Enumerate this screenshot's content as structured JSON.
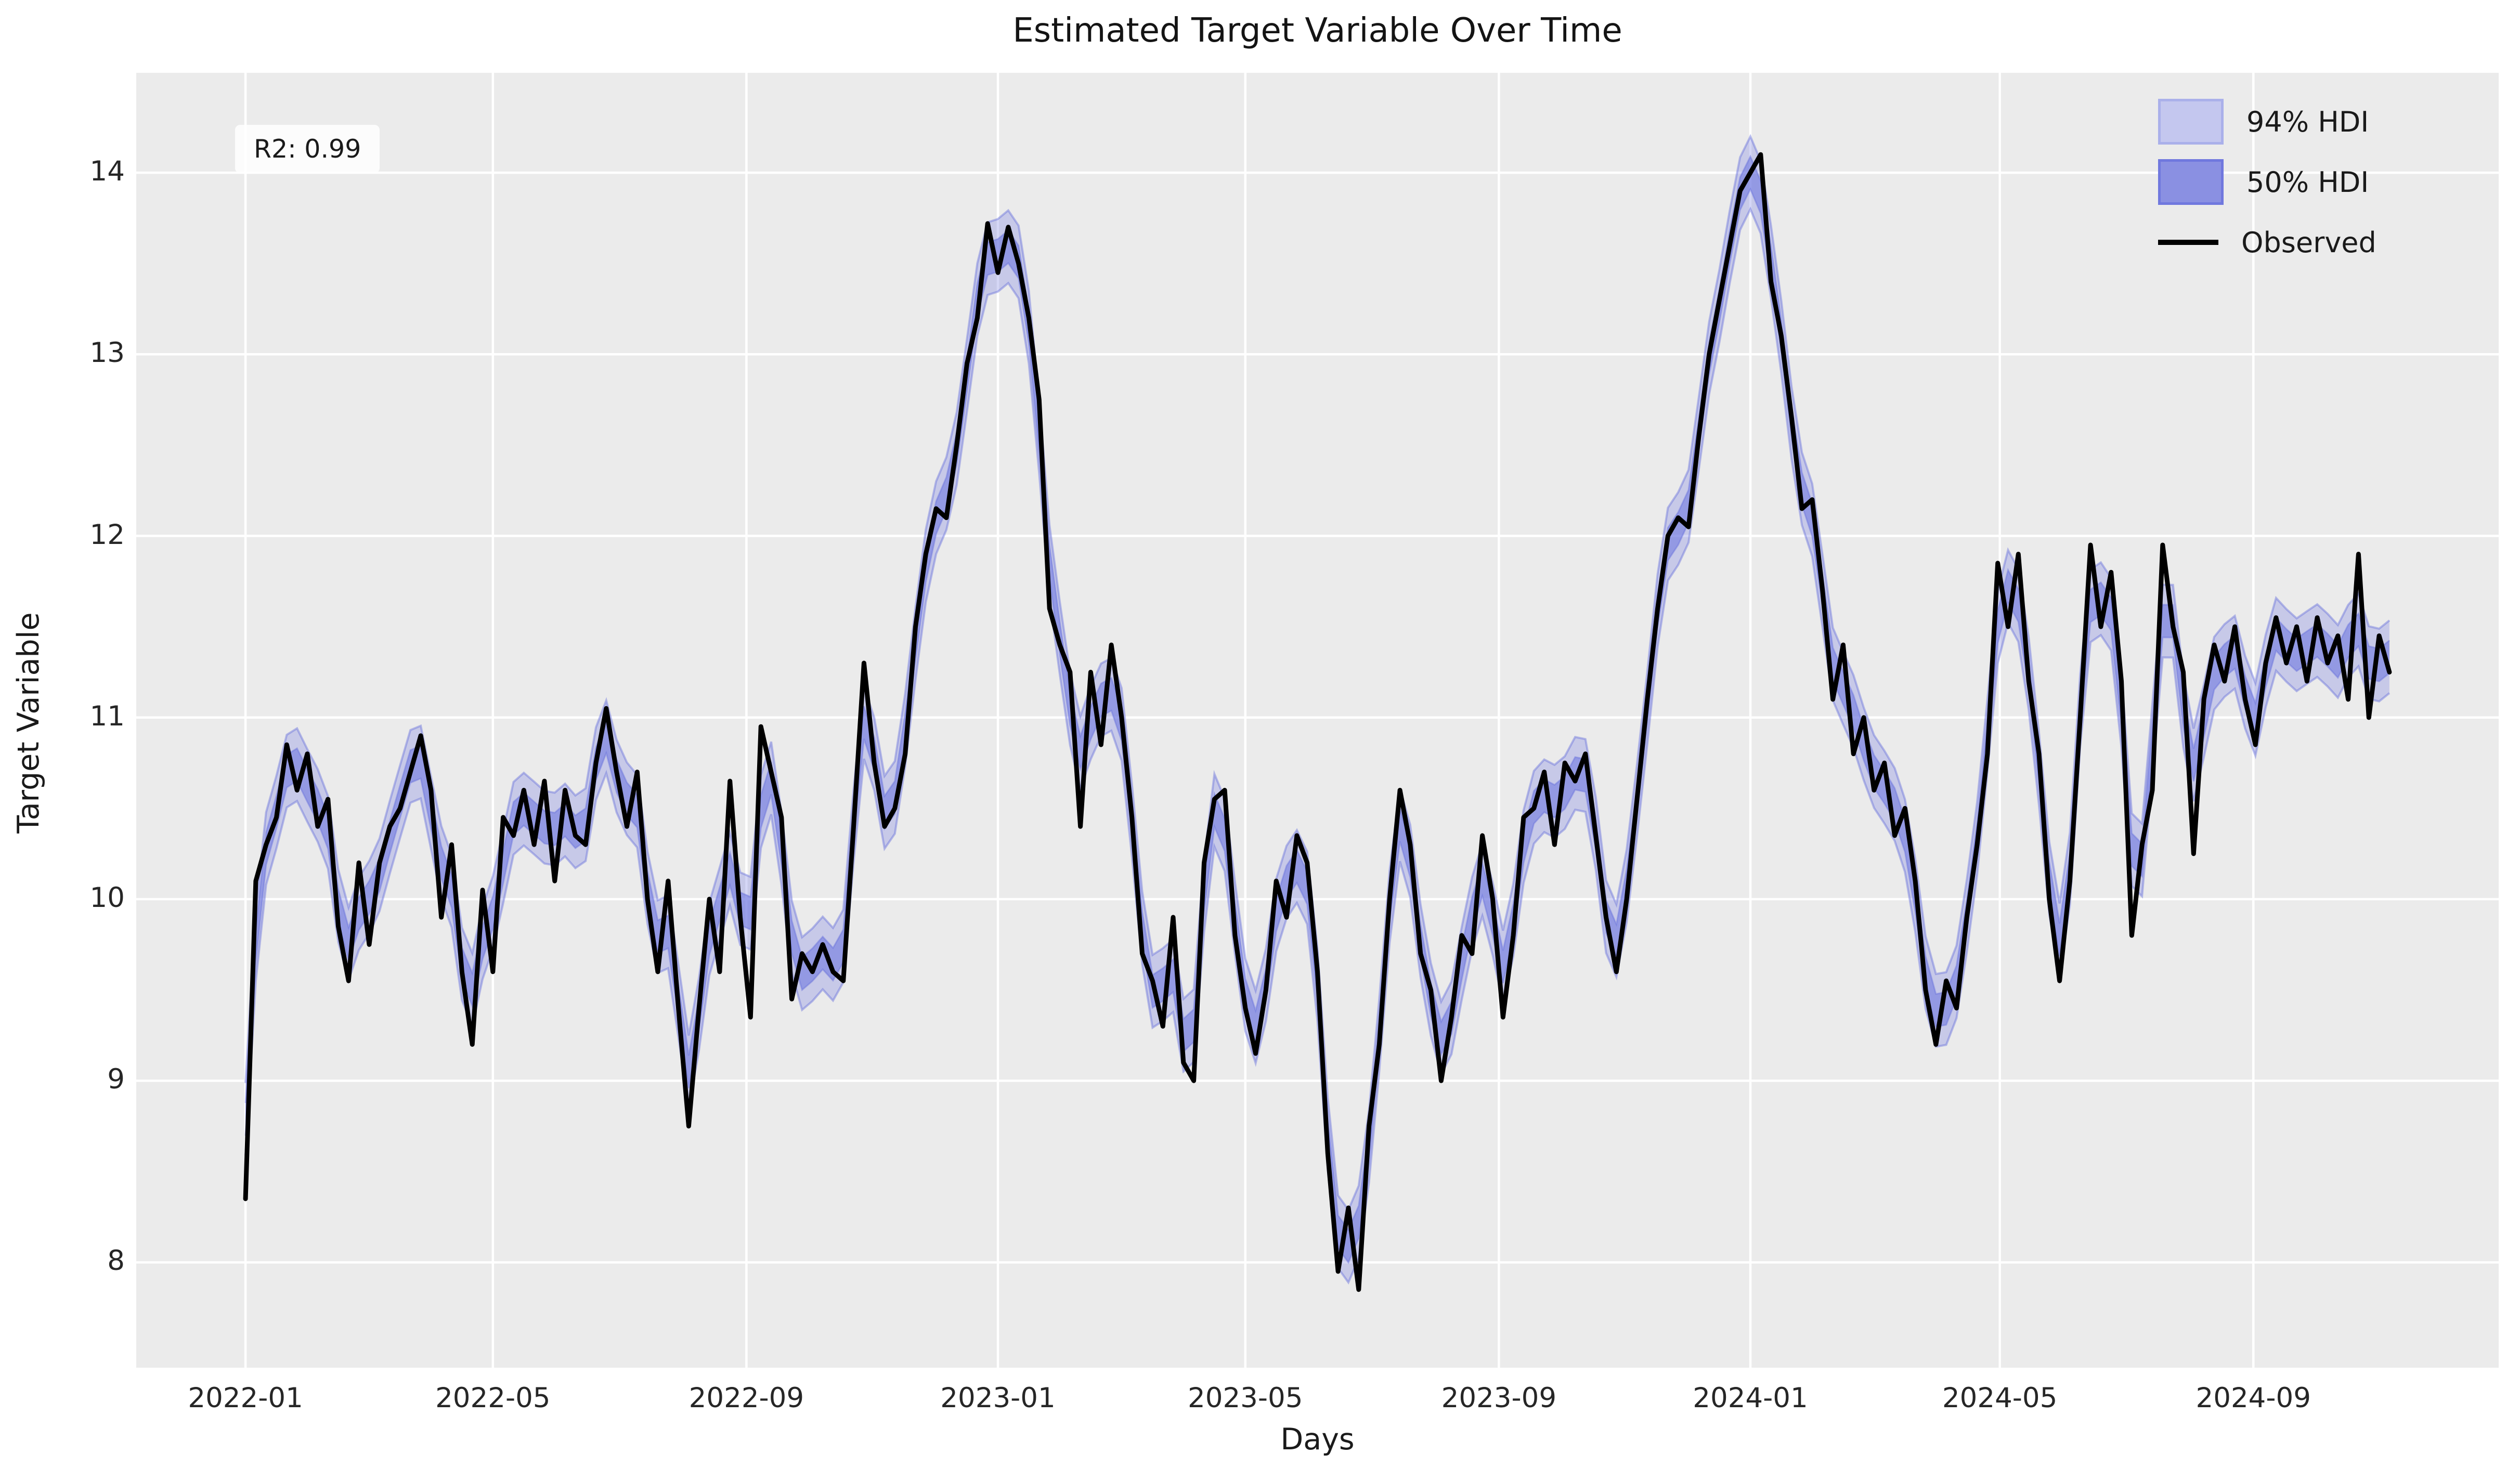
{
  "title": "Estimated Target Variable Over Time",
  "axes": {
    "xlabel": "Days",
    "ylabel": "Target Variable"
  },
  "annotation": {
    "r2_text": "R2: 0.99"
  },
  "legend": {
    "items": [
      {
        "label": "94% HDI",
        "swatch": "patch",
        "fill": "#c4c7ef",
        "edge": "#aab0ea"
      },
      {
        "label": "50% HDI",
        "swatch": "patch",
        "fill": "#8a90e2",
        "edge": "#7078de"
      },
      {
        "label": "Observed",
        "swatch": "line",
        "fill": "#000000"
      }
    ]
  },
  "colors": {
    "figure_background": "#ffffff",
    "plot_background": "#ebebeb",
    "grid": "#ffffff",
    "observed_line": "#000000",
    "band94_fill": "rgba(124,132,228,0.32)",
    "band50_fill": "rgba(104,113,223,0.55)",
    "band_edge": "rgba(104,112,220,0.45)",
    "tick_label": "#262626"
  },
  "chart_data": {
    "type": "line",
    "title": "Estimated Target Variable Over Time",
    "xlabel": "Days",
    "ylabel": "Target Variable",
    "x_start_date": "2022-01-01",
    "x_step_days": 5,
    "ylim": [
      7.42,
      14.55
    ],
    "xlim_days": [
      -53,
      1093
    ],
    "yticks": [
      8,
      9,
      10,
      11,
      12,
      13,
      14
    ],
    "xticks": [
      {
        "label": "2022-01",
        "day": 0
      },
      {
        "label": "2022-05",
        "day": 120
      },
      {
        "label": "2022-09",
        "day": 243
      },
      {
        "label": "2023-01",
        "day": 365
      },
      {
        "label": "2023-05",
        "day": 485
      },
      {
        "label": "2023-09",
        "day": 608
      },
      {
        "label": "2024-01",
        "day": 730
      },
      {
        "label": "2024-05",
        "day": 851
      },
      {
        "label": "2024-09",
        "day": 974
      }
    ],
    "series": [
      {
        "name": "Observed",
        "values": [
          8.35,
          10.1,
          10.3,
          10.45,
          10.85,
          10.6,
          10.8,
          10.4,
          10.55,
          9.85,
          9.55,
          10.2,
          9.75,
          10.2,
          10.4,
          10.5,
          10.7,
          10.9,
          10.6,
          9.9,
          10.3,
          9.6,
          9.2,
          10.05,
          9.6,
          10.45,
          10.35,
          10.6,
          10.3,
          10.65,
          10.1,
          10.6,
          10.35,
          10.3,
          10.75,
          11.05,
          10.7,
          10.4,
          10.7,
          10.0,
          9.6,
          10.1,
          9.4,
          8.75,
          9.4,
          10.0,
          9.6,
          10.65,
          9.9,
          9.35,
          10.95,
          10.7,
          10.45,
          9.45,
          9.7,
          9.6,
          9.75,
          9.6,
          9.55,
          10.4,
          11.3,
          10.75,
          10.4,
          10.5,
          10.8,
          11.5,
          11.9,
          12.15,
          12.1,
          12.5,
          12.95,
          13.2,
          13.72,
          13.45,
          13.7,
          13.5,
          13.2,
          12.75,
          11.6,
          11.4,
          11.25,
          10.4,
          11.25,
          10.85,
          11.4,
          11.0,
          10.45,
          9.7,
          9.55,
          9.3,
          9.9,
          9.1,
          9.0,
          10.2,
          10.55,
          10.6,
          9.8,
          9.4,
          9.15,
          9.5,
          10.1,
          9.9,
          10.35,
          10.2,
          9.6,
          8.6,
          7.95,
          8.3,
          7.85,
          8.75,
          9.2,
          10.0,
          10.6,
          10.3,
          9.7,
          9.5,
          9.0,
          9.35,
          9.8,
          9.7,
          10.35,
          10.0,
          9.35,
          9.8,
          10.45,
          10.5,
          10.7,
          10.3,
          10.75,
          10.65,
          10.8,
          10.35,
          9.9,
          9.6,
          10.0,
          10.55,
          11.1,
          11.6,
          12.0,
          12.1,
          12.05,
          12.55,
          13.0,
          13.3,
          13.6,
          13.9,
          14.0,
          14.1,
          13.4,
          13.1,
          12.65,
          12.15,
          12.2,
          11.7,
          11.1,
          11.4,
          10.8,
          11.0,
          10.6,
          10.75,
          10.35,
          10.5,
          10.1,
          9.5,
          9.2,
          9.55,
          9.4,
          9.9,
          10.3,
          10.8,
          11.85,
          11.5,
          11.9,
          11.2,
          10.8,
          10.0,
          9.55,
          10.1,
          11.0,
          11.95,
          11.5,
          11.8,
          11.2,
          9.8,
          10.3,
          10.6,
          11.95,
          11.5,
          11.25,
          10.25,
          11.1,
          11.4,
          11.2,
          11.5,
          11.1,
          10.85,
          11.3,
          11.55,
          11.3,
          11.5,
          11.2,
          11.55,
          11.3,
          11.45,
          11.1,
          11.9,
          11.0,
          11.45,
          11.25
        ]
      }
    ],
    "hdi94_halfwidth": 0.2,
    "hdi50_halfwidth": 0.09,
    "annotation": "R2: 0.99",
    "grid": true,
    "legend_position": "upper right",
    "legend_entries": [
      "94% HDI",
      "50% HDI",
      "Observed"
    ]
  }
}
